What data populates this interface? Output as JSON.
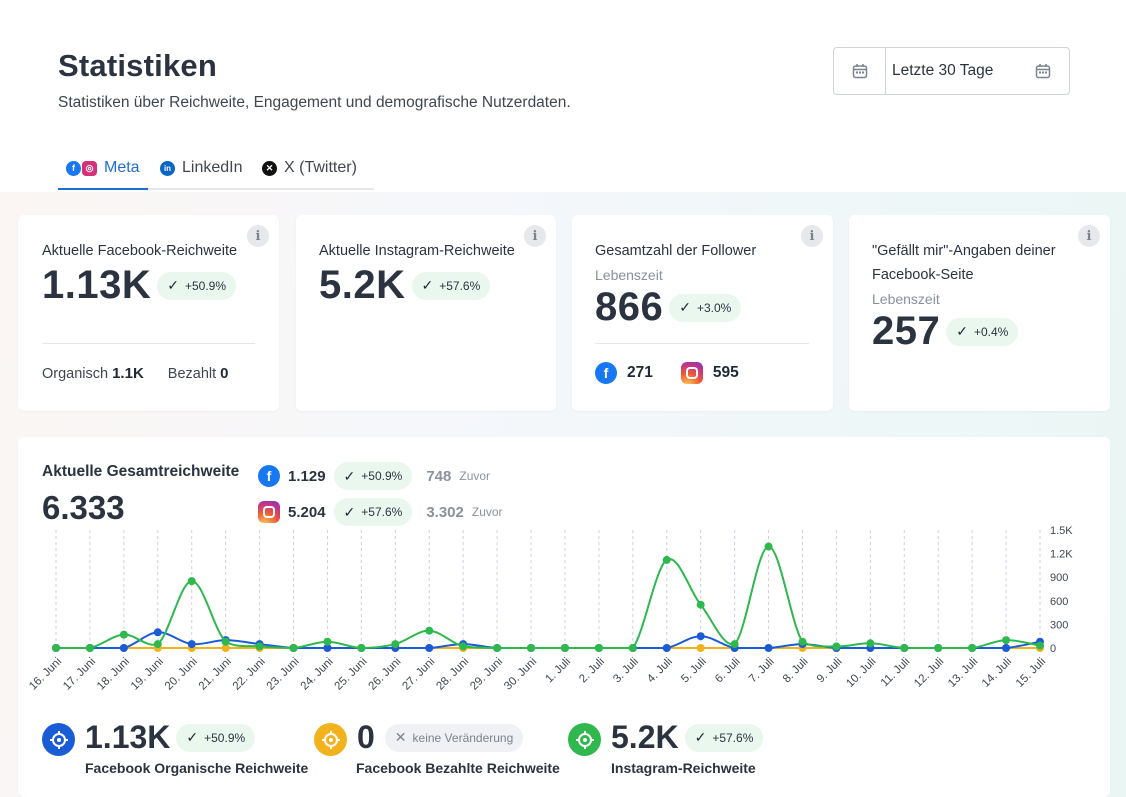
{
  "header": {
    "title": "Statistiken",
    "subtitle": "Statistiken über Reichweite, Engagement und demografische Nutzerdaten."
  },
  "date_picker": {
    "label": "Letzte 30 Tage"
  },
  "tabs": [
    {
      "label": "Meta"
    },
    {
      "label": "LinkedIn"
    },
    {
      "label": "X (Twitter)"
    }
  ],
  "cards": {
    "fb_reach": {
      "title": "Aktuelle Facebook-Reichweite",
      "value": "1.13K",
      "change": "+50.9%",
      "organic_label": "Organisch",
      "organic_value": "1.1K",
      "paid_label": "Bezahlt",
      "paid_value": "0"
    },
    "ig_reach": {
      "title": "Aktuelle Instagram-Reichweite",
      "value": "5.2K",
      "change": "+57.6%"
    },
    "followers": {
      "title": "Gesamtzahl der Follower",
      "subtitle": "Lebenszeit",
      "value": "866",
      "change": "+3.0%",
      "fb_value": "271",
      "ig_value": "595"
    },
    "likes": {
      "title": "\"Gefällt mir\"-Angaben deiner Facebook-Seite",
      "subtitle": "Lebenszeit",
      "value": "257",
      "change": "+0.4%"
    }
  },
  "total_reach": {
    "title": "Aktuelle Gesamtreichweite",
    "value": "6.333",
    "fb": {
      "value": "1.129",
      "change": "+50.9%",
      "previous": "748",
      "previous_label": "Zuvor"
    },
    "ig": {
      "value": "5.204",
      "change": "+57.6%",
      "previous": "3.302",
      "previous_label": "Zuvor"
    }
  },
  "colors": {
    "facebook_organic": "#1a5cd6",
    "facebook_paid": "#f2b21b",
    "instagram": "#2eb84d",
    "accent": "#1f6fd1"
  },
  "chart_data": {
    "type": "line",
    "categories": [
      "16. Juni",
      "17. Juni",
      "18. Juni",
      "19. Juni",
      "20. Juni",
      "21. Juni",
      "22. Juni",
      "23. Juni",
      "24. Juni",
      "25. Juni",
      "26. Juni",
      "27. Juni",
      "28. Juni",
      "29. Juni",
      "30. Juni",
      "1. Juli",
      "2. Juli",
      "3. Juli",
      "4. Juli",
      "5. Juli",
      "6. Juli",
      "7. Juli",
      "8. Juli",
      "9. Juli",
      "10. Juli",
      "11. Juli",
      "12. Juli",
      "13. Juli",
      "14. Juli",
      "15. Juli"
    ],
    "y_ticks": [
      "1.5K",
      "1.2K",
      "900",
      "600",
      "300",
      "0"
    ],
    "ylim": [
      0,
      1500
    ],
    "series": [
      {
        "name": "Facebook Organische Reichweite",
        "values": [
          0,
          0,
          0,
          200,
          50,
          100,
          50,
          0,
          0,
          0,
          0,
          0,
          50,
          0,
          0,
          0,
          0,
          0,
          0,
          150,
          0,
          0,
          50,
          0,
          0,
          0,
          0,
          0,
          0,
          80
        ]
      },
      {
        "name": "Facebook Bezahlte Reichweite",
        "values": [
          0,
          0,
          0,
          0,
          0,
          0,
          0,
          0,
          0,
          0,
          0,
          0,
          0,
          0,
          0,
          0,
          0,
          0,
          0,
          0,
          0,
          0,
          0,
          0,
          0,
          0,
          0,
          0,
          0,
          0
        ]
      },
      {
        "name": "Instagram-Reichweite",
        "values": [
          0,
          0,
          170,
          50,
          850,
          80,
          20,
          0,
          80,
          0,
          50,
          220,
          20,
          0,
          0,
          0,
          0,
          0,
          1120,
          550,
          50,
          1290,
          80,
          20,
          60,
          0,
          0,
          0,
          100,
          30
        ]
      }
    ]
  },
  "legend": [
    {
      "value": "1.13K",
      "badge": "+50.9%",
      "label": "Facebook Organische Reichweite"
    },
    {
      "value": "0",
      "badge": "keine Veränderung",
      "label": "Facebook Bezahlte Reichweite"
    },
    {
      "value": "5.2K",
      "badge": "+57.6%",
      "label": "Instagram-Reichweite"
    }
  ]
}
